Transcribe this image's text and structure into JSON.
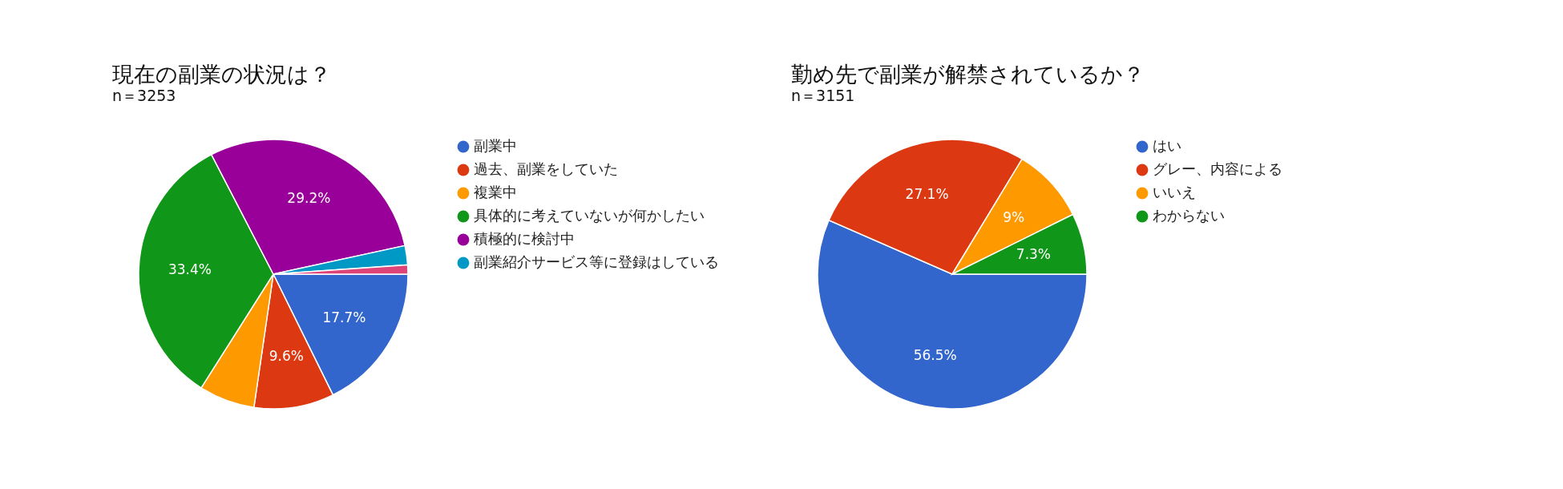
{
  "chart_data": [
    {
      "type": "pie",
      "title": "現在の副業の状況は？",
      "subtitle": "n＝3253",
      "categories": [
        "副業中",
        "過去、副業をしていた",
        "複業中",
        "具体的に考えていないが何かしたい",
        "積極的に検討中",
        "副業紹介サービス等に登録はしている",
        null
      ],
      "values": [
        17.7,
        9.6,
        6.7,
        33.4,
        29.2,
        2.3,
        1.1
      ],
      "colors": [
        "#3366cc",
        "#dc3912",
        "#ff9900",
        "#109618",
        "#990099",
        "#0099c6",
        "#dd4477"
      ],
      "value_labels": [
        "17.7%",
        "9.6%",
        null,
        "33.4%",
        "29.2%",
        null,
        null
      ],
      "legend": "right"
    },
    {
      "type": "pie",
      "title": "勤め先で副業が解禁されているか？",
      "subtitle": "n＝3151",
      "categories": [
        "はい",
        "グレー、内容による",
        "いいえ",
        "わからない"
      ],
      "values": [
        56.5,
        27.1,
        9,
        7.3
      ],
      "colors": [
        "#3366cc",
        "#dc3912",
        "#ff9900",
        "#109618"
      ],
      "value_labels": [
        "56.5%",
        "27.1%",
        "9%",
        "7.3%"
      ],
      "legend": "right"
    }
  ]
}
